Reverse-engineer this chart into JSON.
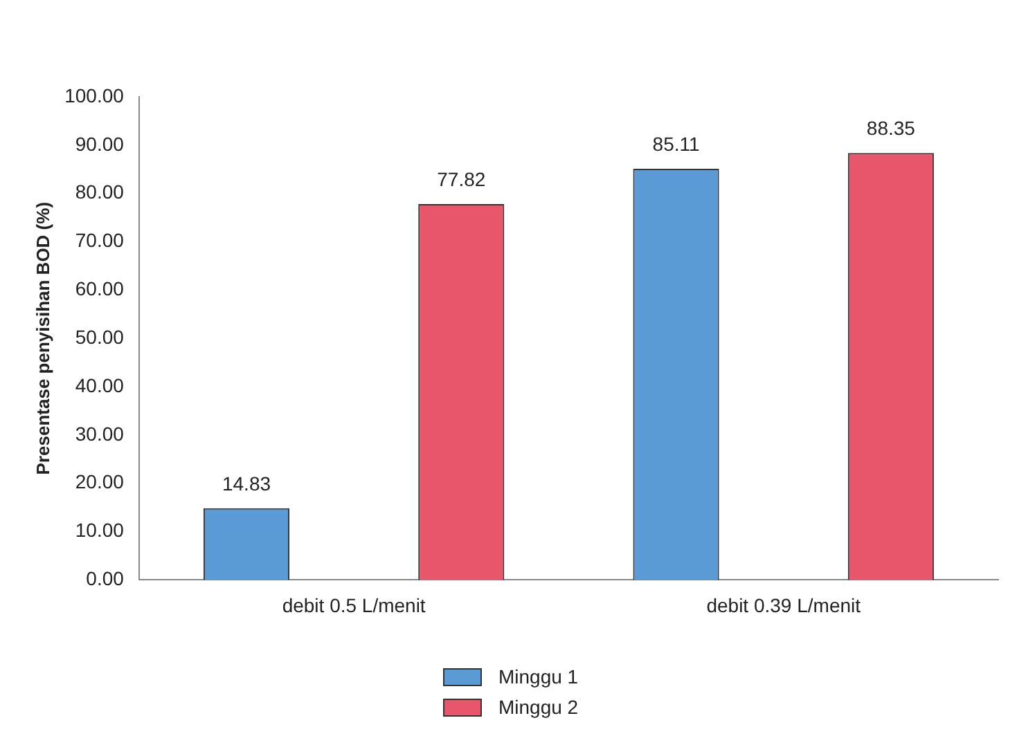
{
  "chart_data": {
    "type": "bar",
    "ylabel": "Presentase penyisihan BOD (%)",
    "categories": [
      "debit 0.5 L/menit",
      "debit 0.39 L/menit"
    ],
    "series": [
      {
        "name": "Minggu 1",
        "color": "#5b9bd5",
        "values": [
          14.83,
          85.11
        ]
      },
      {
        "name": "Minggu 2",
        "color": "#e8566c",
        "values": [
          77.82,
          88.35
        ]
      }
    ],
    "ylim": [
      0,
      100
    ],
    "yticks": [
      {
        "value": 0,
        "label": "0.00"
      },
      {
        "value": 10,
        "label": "10.00"
      },
      {
        "value": 20,
        "label": "20.00"
      },
      {
        "value": 30,
        "label": "30.00"
      },
      {
        "value": 40,
        "label": "40.00"
      },
      {
        "value": 50,
        "label": "50.00"
      },
      {
        "value": 60,
        "label": "60.00"
      },
      {
        "value": 70,
        "label": "70.00"
      },
      {
        "value": 80,
        "label": "80.00"
      },
      {
        "value": 90,
        "label": "90.00"
      },
      {
        "value": 100,
        "label": "100.00"
      }
    ],
    "data_labels": true,
    "grid": false,
    "legend": "bottom"
  }
}
